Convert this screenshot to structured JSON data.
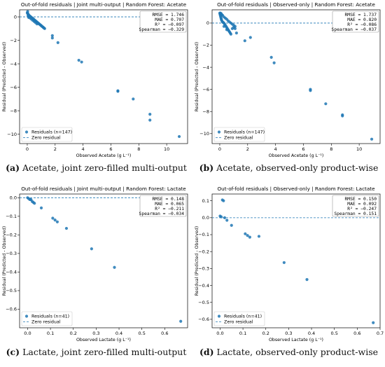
{
  "chart_data": [
    {
      "type": "scatter",
      "title": "Out-of-fold residuals | Joint multi-output | Random Forest: Acetate",
      "xlabel": "Observed Acetate (g L⁻¹)",
      "ylabel": "Residual (Predicted - Observed)",
      "xlim": [
        -0.55,
        11.5
      ],
      "ylim": [
        -10.8,
        0.6
      ],
      "xticks": [
        0,
        2,
        4,
        6,
        8,
        10
      ],
      "yticks": [
        0,
        -2,
        -4,
        -6,
        -8,
        -10
      ],
      "xtick_labels": [
        "0",
        "2",
        "4",
        "6",
        "8",
        "10"
      ],
      "ytick_labels": [
        "0",
        "−2",
        "−4",
        "−6",
        "−8",
        "−10"
      ],
      "stats": [
        "RMSE = 1.746",
        "MAE = 0.707",
        "R² = −0.097",
        "Spearman = −0.329"
      ],
      "legend": [
        "Residuals (n=147)",
        "Zero residual"
      ],
      "legend_position": "lower-left",
      "stats_position": "top-right",
      "caption_letter": "(a)",
      "caption_text": "Acetate, joint zero-filled multi-output",
      "x": [
        0.0,
        0.02,
        0.05,
        0.08,
        0.1,
        0.15,
        0.2,
        0.25,
        0.3,
        0.35,
        0.4,
        0.45,
        0.5,
        0.55,
        0.6,
        0.65,
        0.7,
        0.75,
        0.8,
        0.85,
        0.9,
        0.95,
        1.0,
        1.05,
        1.1,
        1.15,
        1.2,
        1.25,
        0.03,
        0.06,
        0.1,
        0.12,
        0.15,
        0.2,
        0.3,
        0.4,
        0.5,
        0.6,
        0.7,
        1.8,
        1.8,
        2.2,
        3.7,
        3.9,
        6.5,
        6.5,
        7.6,
        8.8,
        8.8,
        10.9
      ],
      "y": [
        0.35,
        0.3,
        0.25,
        0.2,
        0.15,
        0.1,
        0.05,
        0.0,
        -0.05,
        -0.1,
        -0.15,
        -0.2,
        -0.25,
        -0.3,
        -0.35,
        -0.4,
        -0.45,
        -0.5,
        -0.55,
        -0.6,
        -0.65,
        -0.7,
        -0.75,
        -0.8,
        -0.85,
        -0.9,
        -0.95,
        -1.0,
        0.45,
        0.1,
        -0.05,
        0.05,
        0.0,
        -0.1,
        -0.2,
        -0.3,
        -0.4,
        -0.5,
        -0.6,
        -1.6,
        -1.8,
        -2.2,
        -3.7,
        -3.85,
        -6.3,
        -6.35,
        -7.0,
        -8.3,
        -8.8,
        -10.2
      ]
    },
    {
      "type": "scatter",
      "title": "Out-of-fold residuals | Observed-only | Random Forest: Acetate",
      "xlabel": "Observed Acetate (g L⁻¹)",
      "ylabel": "Residual (Predicted - Observed)",
      "xlim": [
        -0.55,
        11.5
      ],
      "ylim": [
        -10.9,
        1.2
      ],
      "xticks": [
        0,
        2,
        4,
        6,
        8,
        10
      ],
      "yticks": [
        0,
        -2,
        -4,
        -6,
        -8,
        -10
      ],
      "xtick_labels": [
        "0",
        "2",
        "4",
        "6",
        "8",
        "10"
      ],
      "ytick_labels": [
        "0",
        "−2",
        "−4",
        "−6",
        "−8",
        "−10"
      ],
      "stats": [
        "RMSE = 1.737",
        "MAE = 0.820",
        "R² = −0.086",
        "Spearman = −0.037"
      ],
      "legend": [
        "Residuals (n=147)",
        "Zero residual"
      ],
      "legend_position": "lower-left",
      "stats_position": "top-right",
      "caption_letter": "(b)",
      "caption_text": "Acetate, observed-only product-wise",
      "x": [
        0.0,
        0.02,
        0.04,
        0.06,
        0.08,
        0.1,
        0.12,
        0.15,
        0.2,
        0.25,
        0.3,
        0.35,
        0.4,
        0.45,
        0.5,
        0.55,
        0.6,
        0.65,
        0.7,
        0.75,
        0.8,
        0.9,
        1.0,
        1.1,
        0.05,
        0.1,
        0.15,
        0.2,
        0.3,
        0.4,
        0.5,
        0.6,
        0.7,
        0.8,
        0.9,
        1.0,
        1.1,
        1.2,
        0.3,
        0.5,
        1.8,
        2.2,
        3.7,
        3.9,
        6.5,
        6.5,
        7.6,
        8.8,
        8.8,
        10.9
      ],
      "y": [
        0.9,
        0.8,
        0.7,
        0.6,
        0.5,
        0.4,
        0.3,
        0.2,
        0.1,
        0.05,
        0.0,
        -0.1,
        -0.2,
        -0.3,
        -0.4,
        -0.5,
        -0.6,
        -0.7,
        -0.8,
        -0.9,
        -1.0,
        -0.5,
        -0.4,
        -0.3,
        0.9,
        0.85,
        0.75,
        0.7,
        0.55,
        0.45,
        0.35,
        0.2,
        0.1,
        0.0,
        -0.1,
        -0.2,
        -0.5,
        -0.9,
        -0.3,
        -0.6,
        -1.6,
        -1.3,
        -3.1,
        -3.6,
        -6.0,
        -6.1,
        -7.3,
        -8.3,
        -8.4,
        -10.5
      ]
    },
    {
      "type": "scatter",
      "title": "Out-of-fold residuals | Joint multi-output | Random Forest: Lactate",
      "xlabel": "Observed Lactate (g L⁻¹)",
      "ylabel": "Residual (Predicted - Observed)",
      "xlim": [
        -0.035,
        0.7
      ],
      "ylim": [
        -0.7,
        0.02
      ],
      "xticks": [
        0.0,
        0.1,
        0.2,
        0.3,
        0.4,
        0.5,
        0.6
      ],
      "yticks": [
        0.0,
        -0.1,
        -0.2,
        -0.3,
        -0.4,
        -0.5,
        -0.6
      ],
      "xtick_labels": [
        "0.0",
        "0.1",
        "0.2",
        "0.3",
        "0.4",
        "0.5",
        "0.6"
      ],
      "ytick_labels": [
        "0.0",
        "−0.1",
        "−0.2",
        "−0.3",
        "−0.4",
        "−0.5",
        "−0.6"
      ],
      "stats": [
        "RMSE = 0.148",
        "MAE = 0.065",
        "R² = −0.211",
        "Spearman = −0.034"
      ],
      "legend": [
        "Residuals (n=41)",
        "Zero residual"
      ],
      "legend_position": "lower-left",
      "stats_position": "top-right",
      "caption_letter": "(c)",
      "caption_text": "Lactate, joint zero-filled multi-output",
      "x": [
        0.0,
        0.005,
        0.01,
        0.015,
        0.02,
        0.025,
        0.03,
        0.06,
        0.11,
        0.12,
        0.13,
        0.17,
        0.28,
        0.38,
        0.67
      ],
      "y": [
        0.0,
        -0.005,
        -0.01,
        -0.01,
        -0.02,
        -0.025,
        -0.03,
        -0.055,
        -0.11,
        -0.12,
        -0.13,
        -0.165,
        -0.275,
        -0.375,
        -0.665
      ]
    },
    {
      "type": "scatter",
      "title": "Out-of-fold residuals | Observed-only | Random Forest: Lactate",
      "xlabel": "Observed Lactate (g L⁻¹)",
      "ylabel": "Residual (Predicted - Observed)",
      "xlim": [
        -0.035,
        0.7
      ],
      "ylim": [
        -0.65,
        0.14
      ],
      "xticks": [
        0.0,
        0.1,
        0.2,
        0.3,
        0.4,
        0.5,
        0.6,
        0.7
      ],
      "yticks": [
        0.1,
        0.0,
        -0.1,
        -0.2,
        -0.3,
        -0.4,
        -0.5,
        -0.6
      ],
      "xtick_labels": [
        "0.0",
        "0.1",
        "0.2",
        "0.3",
        "0.4",
        "0.5",
        "0.6",
        "0.7"
      ],
      "ytick_labels": [
        "0.1",
        "0.0",
        "−0.1",
        "−0.2",
        "−0.3",
        "−0.4",
        "−0.5",
        "−0.6"
      ],
      "stats": [
        "RMSE = 0.150",
        "MAE = 0.092",
        "R² = −0.247",
        "Spearman = 0.151"
      ],
      "legend": [
        "Residuals (n=41)",
        "Zero residual"
      ],
      "legend_position": "lower-left",
      "stats_position": "top-right",
      "caption_letter": "(d)",
      "caption_text": "Lactate, observed-only product-wise",
      "x": [
        0.0,
        0.005,
        0.01,
        0.015,
        0.02,
        0.03,
        0.05,
        0.11,
        0.12,
        0.13,
        0.17,
        0.28,
        0.38,
        0.67
      ],
      "y": [
        0.01,
        0.005,
        0.105,
        0.1,
        0.0,
        -0.015,
        -0.045,
        -0.095,
        -0.105,
        -0.115,
        -0.11,
        -0.265,
        -0.365,
        -0.62
      ]
    }
  ]
}
